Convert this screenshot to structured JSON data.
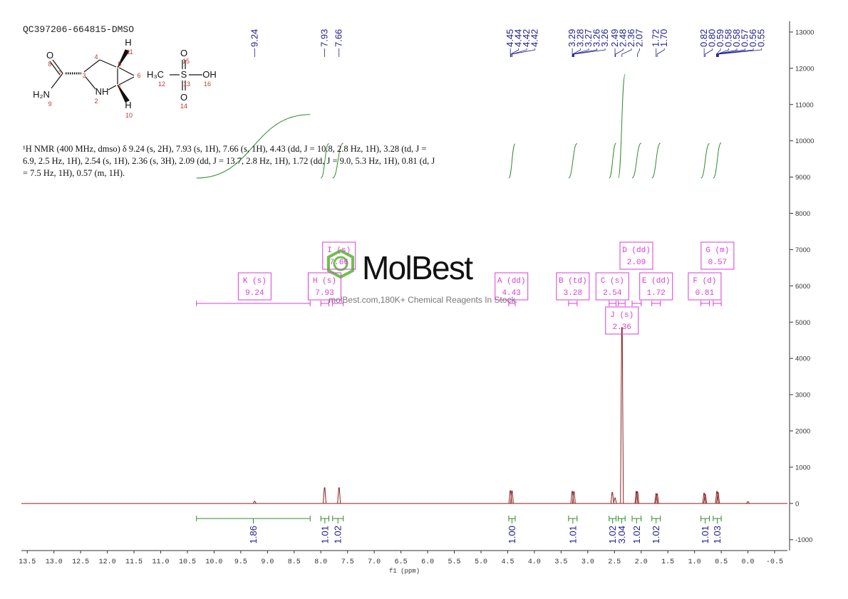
{
  "chart_data": {
    "type": "nmr",
    "title": "QC397206-664815-DMSO",
    "description": "¹H NMR (400 MHz, dmso) δ 9.24 (s, 2H), 7.93 (s, 1H), 7.66 (s, 1H), 4.43 (dd, J = 10.8, 2.8 Hz, 1H), 3.28 (td, J = 6.9, 2.5 Hz, 1H), 2.54 (s, 1H), 2.36 (s, 3H), 2.09 (dd, J = 13.7, 2.8 Hz, 1H), 1.72 (dd, J = 9.0, 5.3 Hz, 1H), 0.81 (d, J = 7.5 Hz, 1H), 0.57 (m, 1H).",
    "xlabel": "f1 (ppm)",
    "xlim": [
      13.61,
      -0.74
    ],
    "xticks": [
      13.5,
      {
        "value": 13,
        "label": "13.0"
      },
      12.5,
      {
        "value": 12,
        "label": "12.0"
      },
      11.5,
      {
        "value": 11,
        "label": "11.0"
      },
      10.5,
      {
        "value": 10,
        "label": "10.0"
      },
      9.5,
      {
        "value": 9,
        "label": "9.0"
      },
      8.5,
      {
        "value": 8,
        "label": "8.0"
      },
      7.5,
      {
        "value": 7,
        "label": "7.0"
      },
      6.5,
      {
        "value": 6,
        "label": "6.0"
      },
      5.5,
      {
        "value": 5,
        "label": "5.0"
      },
      4.5,
      {
        "value": 4,
        "label": "4.0"
      },
      3.5,
      {
        "value": 3,
        "label": "3.0"
      },
      2.5,
      {
        "value": 2,
        "label": "2.0"
      },
      1.5,
      {
        "value": 1,
        "label": "1.0"
      },
      0.5,
      {
        "value": 0,
        "label": "0.0"
      },
      -0.5
    ],
    "ylim": [
      -1300,
      13300
    ],
    "yticks": [
      13000,
      12000,
      11000,
      10000,
      9000,
      8000,
      7000,
      6000,
      5000,
      4000,
      3000,
      2000,
      1000,
      0,
      -1000
    ],
    "color": "#8b2020",
    "peaks": {
      "ppm": [
        9.24,
        7.93,
        7.66,
        4.45,
        4.42,
        3.29,
        3.26,
        2.54,
        2.49,
        2.36,
        2.09,
        2.07,
        1.72,
        1.7,
        0.82,
        0.8,
        0.58,
        0.56,
        0.0
      ],
      "intensity": [
        60,
        430,
        430,
        350,
        340,
        330,
        320,
        300,
        150,
        4850,
        330,
        320,
        270,
        260,
        280,
        250,
        330,
        300,
        50
      ]
    },
    "peak_labels": [
      9.24,
      7.93,
      7.66,
      4.45,
      4.44,
      4.42,
      4.42,
      3.29,
      3.28,
      3.27,
      3.26,
      3.26,
      2.49,
      2.48,
      2.36,
      2.07,
      1.72,
      {
        "value": 1.7,
        "label": "1.70"
      },
      0.82,
      {
        "value": 0.8,
        "label": "0.80"
      },
      0.59,
      0.58,
      0.58,
      0.57,
      0.56,
      0.55
    ],
    "integrations": {
      "values": [
        1.86,
        1.01,
        1.02,
        {
          "value": 1,
          "label": "1.00"
        },
        1.01,
        1.02,
        3.04,
        1.02,
        1.02,
        1.01,
        1.03
      ],
      "from": [
        10.33,
        8.0,
        7.78,
        4.48,
        3.36,
        2.6,
        2.43,
        2.17,
        1.8,
        0.88,
        0.65
      ],
      "to": [
        8.2,
        7.85,
        7.58,
        4.36,
        3.2,
        2.47,
        2.3,
        2.0,
        1.64,
        0.72,
        0.5
      ]
    },
    "multiplets": {
      "labels": [
        "K (s)",
        "H (s)",
        "I (s)",
        "A (dd)",
        "B (td)",
        "C (s)",
        "J (s)",
        "D (dd)",
        "E (dd)",
        "F (d)",
        "G (m)"
      ],
      "shifts": [
        9.24,
        7.93,
        7.66,
        4.43,
        3.28,
        2.54,
        2.36,
        2.09,
        1.72,
        0.81,
        0.57
      ]
    },
    "structure": {
      "atoms": [
        "O",
        "H₂N",
        "NH",
        "H",
        "H",
        "H₃C",
        "S",
        "OH",
        "O",
        "O"
      ],
      "numbers": [
        "8",
        "7",
        "3",
        "4",
        "5",
        "6",
        "1",
        "2",
        "9",
        "11",
        "10",
        "12",
        "15",
        "13",
        "14",
        "16"
      ]
    },
    "watermark": {
      "brand": "MolBest",
      "tagline": "molBest.com,180K+ Chemical Reagents In Stock."
    }
  }
}
